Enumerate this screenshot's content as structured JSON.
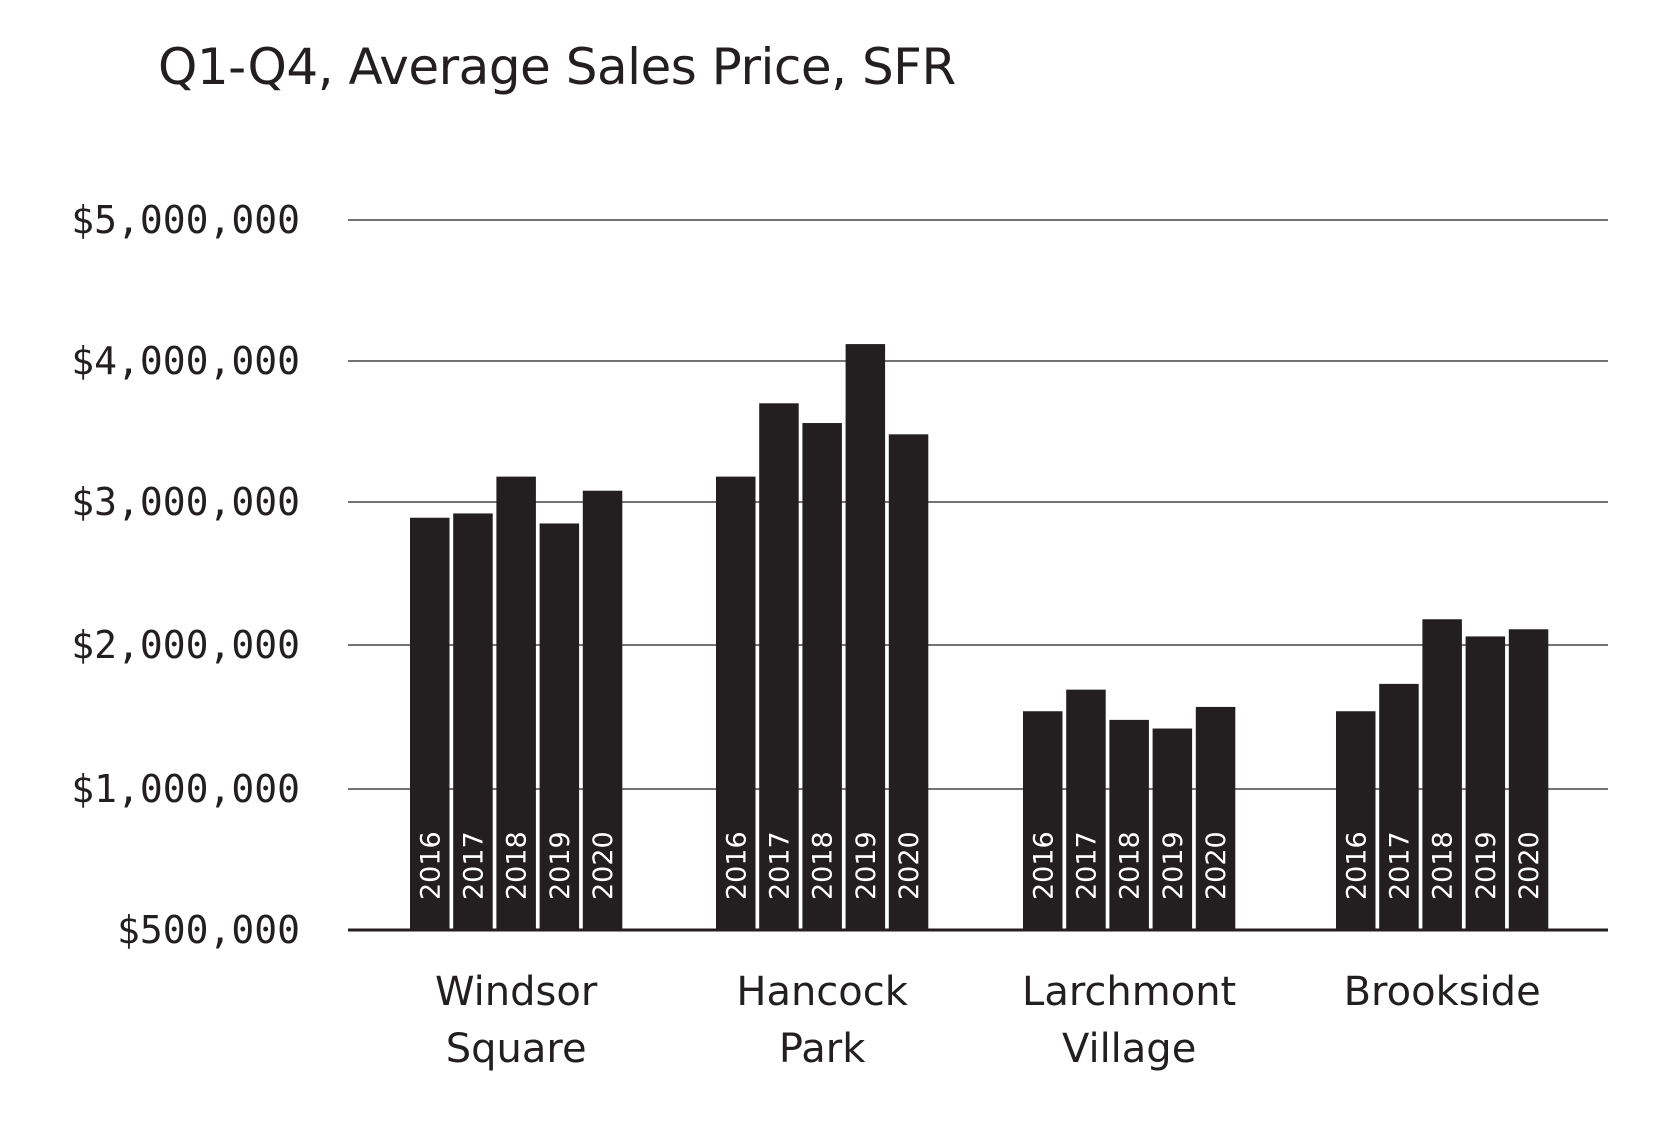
{
  "chart_data": {
    "type": "bar",
    "title": "Q1-Q4, Average Sales Price, SFR",
    "xlabel": "",
    "ylabel": "",
    "ylim": [
      500000,
      5000000
    ],
    "yticks": [
      500000,
      1000000,
      2000000,
      3000000,
      4000000,
      5000000
    ],
    "ytick_labels": [
      "$500,000",
      "$1,000,000",
      "$2,000,000",
      "$3,000,000",
      "$4,000,000",
      "$5,000,000"
    ],
    "categories": [
      {
        "line1": "Windsor",
        "line2": "Square"
      },
      {
        "line1": "Hancock",
        "line2": "Park"
      },
      {
        "line1": "Larchmont",
        "line2": "Village"
      },
      {
        "line1": "Brookside",
        "line2": ""
      }
    ],
    "series": [
      {
        "name": "2016",
        "values": [
          2890000,
          3180000,
          1540000,
          1540000
        ]
      },
      {
        "name": "2017",
        "values": [
          2920000,
          3700000,
          1690000,
          1730000
        ]
      },
      {
        "name": "2018",
        "values": [
          3180000,
          3560000,
          1480000,
          2180000
        ]
      },
      {
        "name": "2019",
        "values": [
          2850000,
          4120000,
          1420000,
          2060000
        ]
      },
      {
        "name": "2020",
        "values": [
          3080000,
          3480000,
          1570000,
          2110000
        ]
      }
    ],
    "colors": {
      "bar": "#231f20",
      "grid": "#231f20",
      "text": "#231f20",
      "bar_label": "#ffffff"
    }
  }
}
